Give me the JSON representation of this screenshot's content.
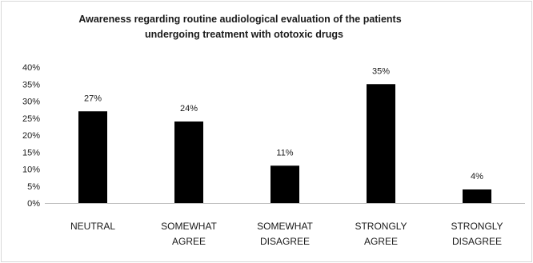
{
  "chart_data": {
    "type": "bar",
    "title": "Awareness regarding routine audiological  evaluation  of the patients undergoing treatment with ototoxic drugs",
    "title_lines": [
      "Awareness regarding routine audiological  evaluation  of the patients",
      "undergoing treatment with ototoxic drugs"
    ],
    "categories": [
      [
        "NEUTRAL"
      ],
      [
        "SOMEWHAT",
        "AGREE"
      ],
      [
        "SOMEWHAT",
        "DISAGREE"
      ],
      [
        "STRONGLY",
        "AGREE"
      ],
      [
        "STRONGLY",
        "DISAGREE"
      ]
    ],
    "values": [
      27,
      24,
      11,
      35,
      4
    ],
    "data_labels": [
      "27%",
      "24%",
      "11%",
      "35%",
      "4%"
    ],
    "y_ticks": [
      "0%",
      "5%",
      "10%",
      "15%",
      "20%",
      "25%",
      "30%",
      "35%",
      "40%"
    ],
    "ylim": [
      0,
      40
    ],
    "xlabel": "",
    "ylabel": "",
    "grid": false,
    "legend": "none",
    "bar_color": "#000000"
  }
}
